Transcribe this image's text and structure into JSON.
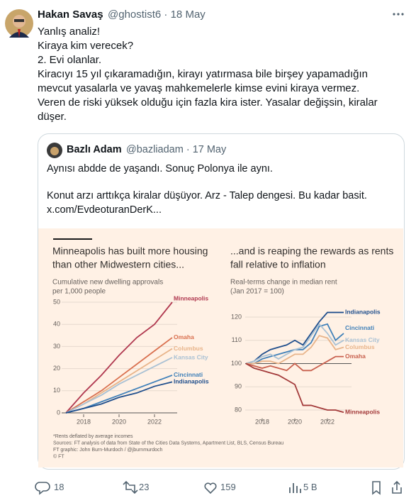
{
  "tweet": {
    "author": "Hakan Savaş",
    "meta": "@ghostist6 · 18 May",
    "lines": [
      "Yanlış analiz!",
      "Kiraya kim verecek?",
      "2. Evi olanlar.",
      "Kiracıyı 15 yıl çıkaramadığın, kirayı yatırmasa bile birşey yapamadığın",
      "mevcut yasalarla ve yavaş mahkemelerle kimse evini kiraya vermez.",
      "Veren de riski yüksek olduğu için fazla kira ister. Yasalar değişsin, kiralar",
      "düşer."
    ]
  },
  "quote": {
    "author": "Bazlı Adam",
    "meta": "@bazliadam · 17 May",
    "lines": [
      "Aynısı abdde de yaşandı. Sonuç Polonya ile aynı.",
      "Konut arzı arttıkça kiralar düşüyor. Arz - Talep dengesi. Bu kadar basit.",
      "x.com/EvdeoturanDerK..."
    ]
  },
  "chart_data": [
    {
      "type": "line",
      "title": [
        "Minneapolis has built more housing",
        "than other Midwestern cities..."
      ],
      "subtitle": [
        "Cumulative new dwelling approvals",
        "per 1,000 people"
      ],
      "x": [
        2017,
        2018,
        2019,
        2020,
        2021,
        2022,
        2023
      ],
      "xlim": [
        2016.5,
        2023.5
      ],
      "xticks": [
        2018,
        2020,
        2022
      ],
      "ylim": [
        0,
        50
      ],
      "yticks": [
        0,
        10,
        20,
        30,
        40,
        50
      ],
      "grid": true,
      "series": [
        {
          "name": "Minneapolis",
          "color": "#b0384f",
          "values": [
            0,
            9,
            17,
            26,
            34,
            40,
            50
          ]
        },
        {
          "name": "Omaha",
          "color": "#d9704f",
          "values": [
            0,
            5,
            10,
            16,
            22,
            28,
            34
          ]
        },
        {
          "name": "Columbus",
          "color": "#e8b48a",
          "values": [
            0,
            4,
            9,
            14,
            19,
            24,
            29
          ]
        },
        {
          "name": "Kansas City",
          "color": "#a9c1d4",
          "values": [
            0,
            4,
            8,
            13,
            17,
            21,
            25
          ]
        },
        {
          "name": "Cincinnati",
          "color": "#3f80b9",
          "values": [
            0,
            2,
            5,
            8,
            11,
            14,
            17
          ]
        },
        {
          "name": "Indianapolis",
          "color": "#1f4e8c",
          "values": [
            0,
            2,
            4,
            7,
            9,
            12,
            14
          ]
        }
      ]
    },
    {
      "type": "line",
      "title": [
        "...and is reaping the rewards as rents",
        "fall relative to inflation"
      ],
      "subtitle": [
        "Real-terms change in median rent",
        "(Jan 2017 = 100)"
      ],
      "x": [
        2017,
        2017.5,
        2018,
        2018.5,
        2019,
        2019.5,
        2020,
        2020.5,
        2021,
        2021.5,
        2022,
        2022.5,
        2023
      ],
      "xlim": [
        2016.8,
        2023.5
      ],
      "xticks": [
        2018,
        2020,
        2022
      ],
      "ylim": [
        77,
        125
      ],
      "yticks": [
        80,
        90,
        100,
        110,
        120
      ],
      "grid": true,
      "series": [
        {
          "name": "Indianapolis",
          "color": "#1f4e8c",
          "values": [
            100,
            101,
            104,
            106,
            107,
            108,
            110,
            108,
            113,
            118,
            122,
            122,
            122
          ]
        },
        {
          "name": "Cincinnati",
          "color": "#3f80b9",
          "values": [
            100,
            100,
            102,
            103,
            104,
            105,
            106,
            106,
            109,
            116,
            117,
            110,
            113
          ]
        },
        {
          "name": "Kansas City",
          "color": "#a9c1d4",
          "values": [
            100,
            101,
            103,
            104,
            102,
            104,
            106,
            107,
            112,
            117,
            113,
            108,
            110
          ]
        },
        {
          "name": "Columbus",
          "color": "#e8b48a",
          "values": [
            100,
            100,
            101,
            101,
            100,
            102,
            104,
            104,
            107,
            112,
            111,
            106,
            107
          ]
        },
        {
          "name": "Omaha",
          "color": "#c8604e",
          "values": [
            100,
            99,
            98,
            99,
            98,
            97,
            100,
            97,
            97,
            99,
            101,
            103,
            103
          ]
        },
        {
          "name": "Minneapolis",
          "color": "#a33a3a",
          "values": [
            100,
            98,
            97,
            96,
            95,
            93,
            91,
            82,
            82,
            81,
            80,
            80,
            79
          ]
        }
      ]
    }
  ],
  "image_notes": [
    "*Rents deflated by average incomes",
    "Sources: FT analysis of data from State of the Cities Data Systems, Apartment List, BLS, Census Bureau",
    "FT graphic: John Burn-Murdoch / @jburnmurdoch",
    "© FT"
  ],
  "actions": {
    "replies": "18",
    "reposts": "23",
    "likes": "159",
    "views": "5 B"
  }
}
